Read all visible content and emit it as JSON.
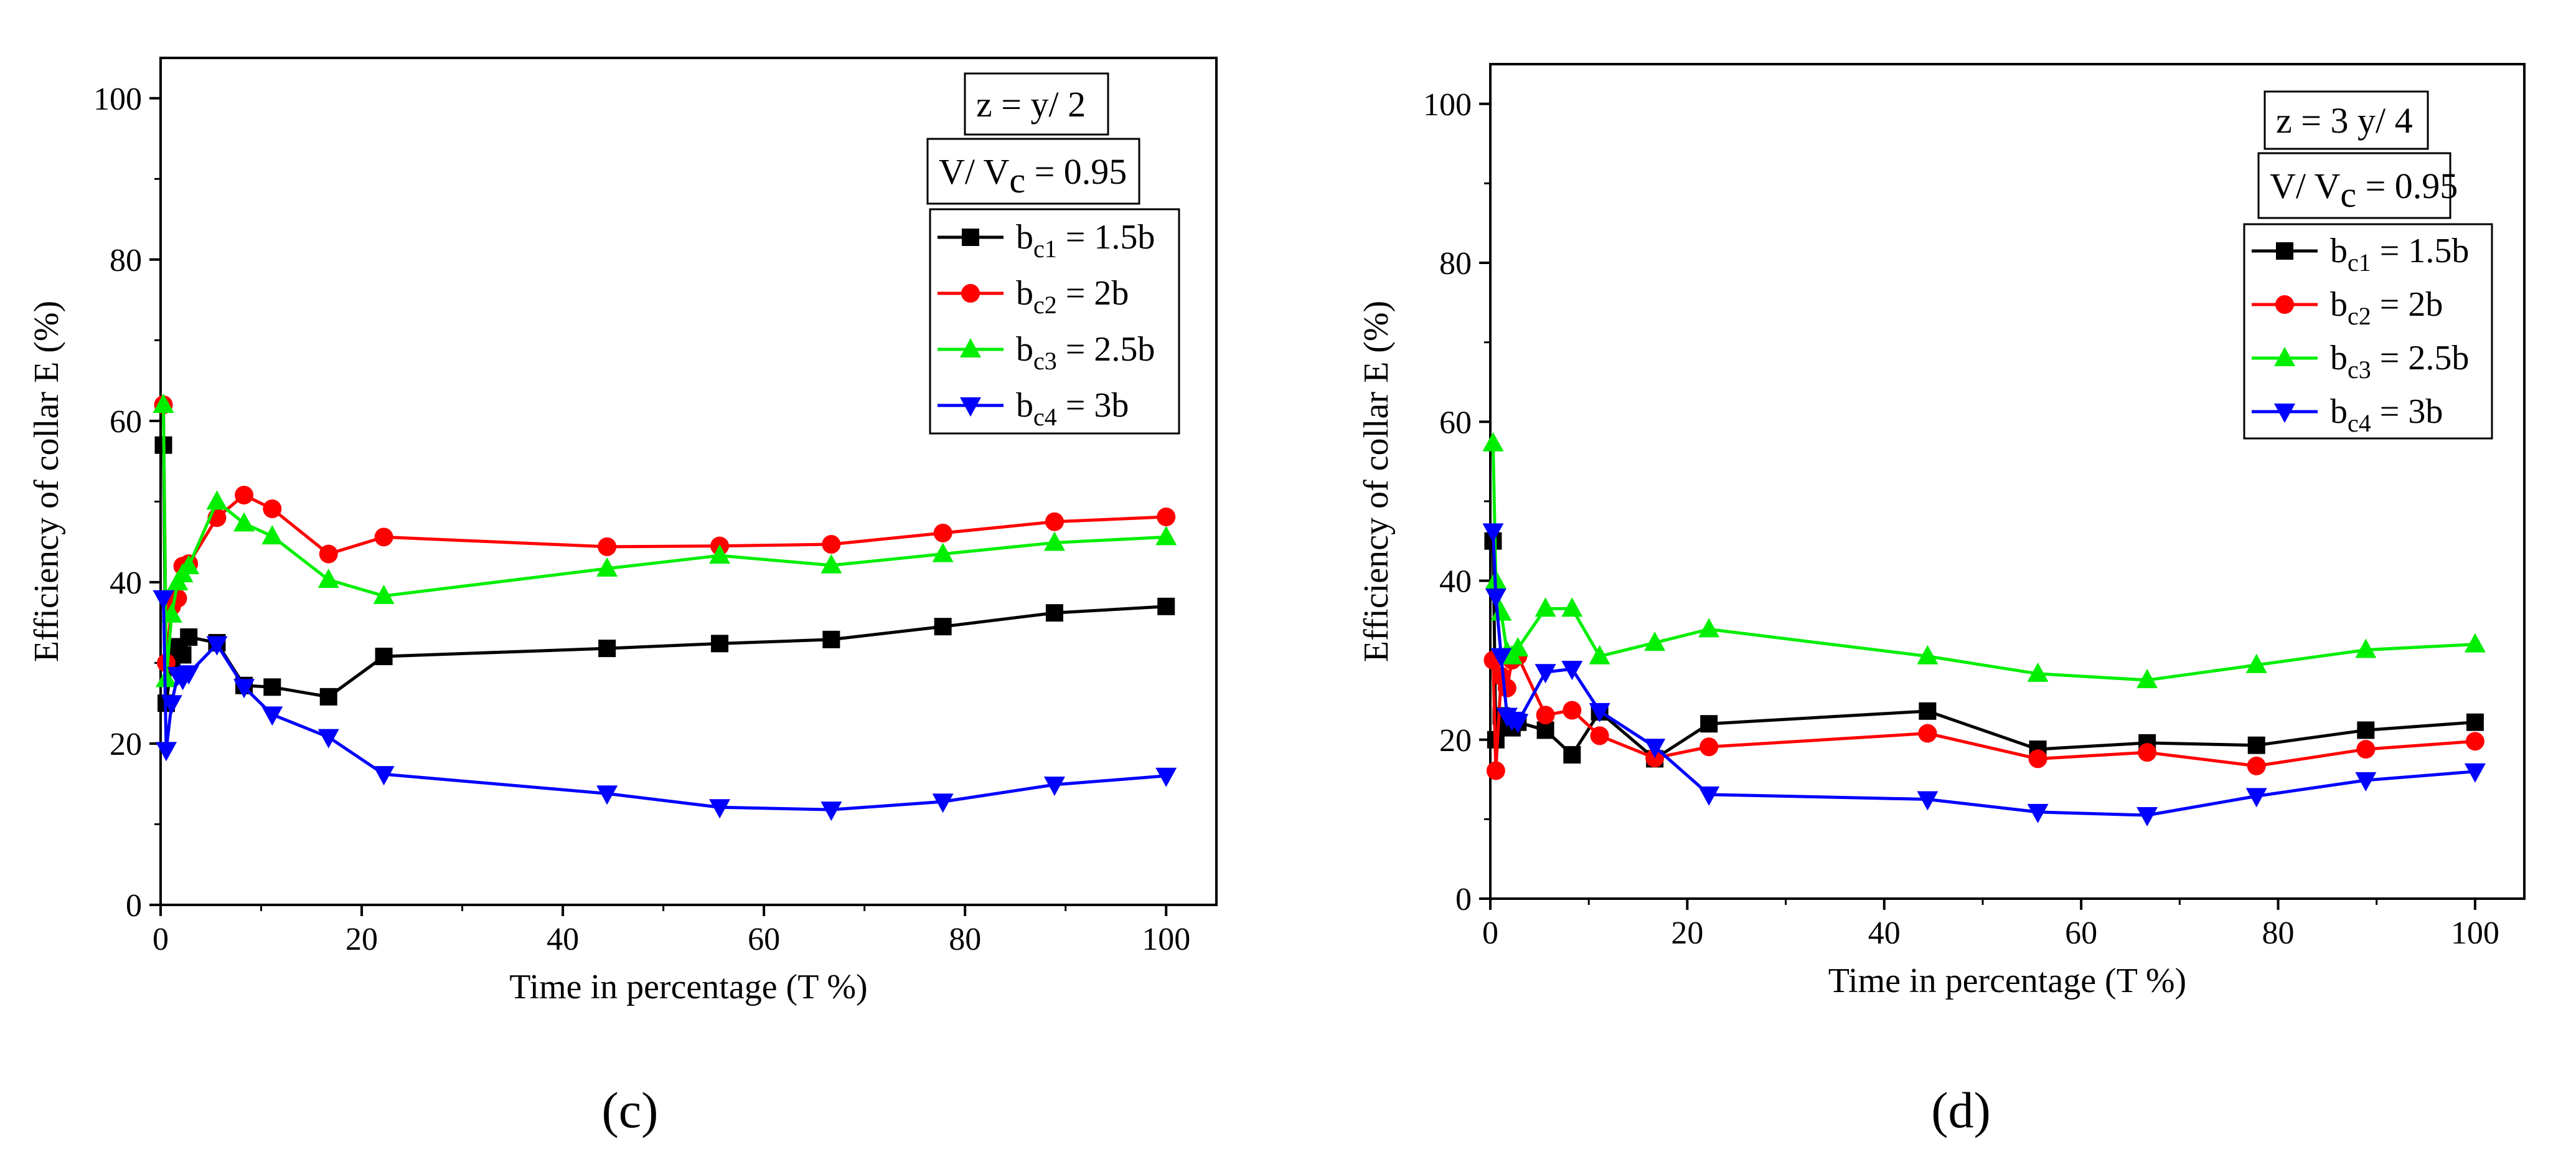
{
  "chart_data": [
    {
      "type": "line",
      "panel_label": "(c)",
      "xlabel": "Time in percentage (T %)",
      "ylabel": "Efficiency of collar E (%)",
      "xlim": [
        0,
        105
      ],
      "ylim": [
        0,
        105
      ],
      "xticks": [
        0,
        20,
        40,
        60,
        80,
        100
      ],
      "yticks": [
        0,
        20,
        40,
        60,
        80,
        100
      ],
      "boxes": [
        "z  =  y/ 2",
        "V/ V"
      ],
      "box_sub": "c",
      "box_value": " = 0.95",
      "legend_position": "top-right",
      "series": [
        {
          "name": "b",
          "sub": "c1",
          "label_value": " = 1.5b",
          "color": "#000000",
          "marker": "square",
          "x": [
            0.28,
            0.56,
            1.1,
            1.7,
            2.2,
            2.8,
            5.6,
            8.3,
            11.1,
            16.7,
            22.2,
            44.4,
            55.6,
            66.7,
            77.8,
            88.9,
            100
          ],
          "y": [
            57,
            25,
            30,
            32,
            31,
            33.2,
            32.5,
            27.2,
            27.0,
            25.8,
            30.8,
            31.8,
            32.4,
            32.9,
            34.5,
            36.2,
            37.0
          ]
        },
        {
          "name": "b",
          "sub": "c2",
          "label_value": " = 2b",
          "color": "#ff0000",
          "marker": "circle",
          "x": [
            0.28,
            0.56,
            1.1,
            1.7,
            2.2,
            2.8,
            5.6,
            8.3,
            11.1,
            16.7,
            22.2,
            44.4,
            55.6,
            66.7,
            77.8,
            88.9,
            100
          ],
          "y": [
            62,
            30,
            37,
            38,
            42,
            42.3,
            48.0,
            50.8,
            49.1,
            43.5,
            45.6,
            44.4,
            44.5,
            44.7,
            46.1,
            47.5,
            48.1
          ]
        },
        {
          "name": "b",
          "sub": "c3",
          "label_value": " = 2.5b",
          "color": "#00ee00",
          "marker": "triangle-up",
          "x": [
            0.28,
            0.56,
            1.1,
            1.7,
            2.2,
            2.8,
            5.6,
            8.3,
            11.1,
            16.7,
            22.2,
            44.4,
            55.6,
            66.7,
            77.8,
            88.9,
            100
          ],
          "y": [
            62,
            28,
            36,
            40,
            41,
            42,
            50.0,
            47.3,
            45.7,
            40.3,
            38.3,
            41.7,
            43.3,
            42.1,
            43.5,
            44.9,
            45.6
          ]
        },
        {
          "name": "b",
          "sub": "c4",
          "label_value": "  = 3b",
          "color": "#0000ff",
          "marker": "triangle-down",
          "x": [
            0.28,
            0.56,
            1.1,
            1.7,
            2.2,
            2.8,
            5.6,
            8.3,
            11.1,
            16.7,
            22.2,
            44.4,
            55.6,
            66.7,
            77.8,
            88.9,
            100
          ],
          "y": [
            38,
            19.2,
            25,
            28.5,
            28,
            28.7,
            32.3,
            27.0,
            23.6,
            20.8,
            16.2,
            13.8,
            12.1,
            11.8,
            12.8,
            14.9,
            16.0
          ]
        }
      ]
    },
    {
      "type": "line",
      "panel_label": "(d)",
      "xlabel": "Time in percentage (T %)",
      "ylabel": "Efficiency of collar E (%)",
      "xlim": [
        0,
        105
      ],
      "ylim": [
        0,
        105
      ],
      "xticks": [
        0,
        20,
        40,
        60,
        80,
        100
      ],
      "yticks": [
        0,
        20,
        40,
        60,
        80,
        100
      ],
      "boxes": [
        "z  =  3 y/ 4",
        "V/ V"
      ],
      "box_sub": "c",
      "box_value": " = 0.95",
      "legend_position": "top-right",
      "series": [
        {
          "name": "b",
          "sub": "c1",
          "label_value": " = 1.5b",
          "color": "#000000",
          "marker": "square",
          "x": [
            0.28,
            0.56,
            1.1,
            1.7,
            2.2,
            2.8,
            5.6,
            8.3,
            11.1,
            16.7,
            22.2,
            44.4,
            55.6,
            66.7,
            77.8,
            88.9,
            100
          ],
          "y": [
            45,
            20,
            23,
            22,
            21.5,
            22.2,
            21.2,
            18.1,
            23.5,
            17.6,
            22.0,
            23.6,
            18.8,
            19.6,
            19.3,
            21.2,
            22.2
          ]
        },
        {
          "name": "b",
          "sub": "c2",
          "label_value": " = 2b",
          "color": "#ff0000",
          "marker": "circle",
          "x": [
            0.28,
            0.56,
            1.1,
            1.7,
            2.2,
            2.8,
            5.6,
            8.3,
            11.1,
            16.7,
            22.2,
            44.4,
            55.6,
            66.7,
            77.8,
            88.9,
            100
          ],
          "y": [
            30,
            16.1,
            28,
            26.5,
            30,
            30.5,
            23.1,
            23.7,
            20.5,
            17.7,
            19.1,
            20.8,
            17.6,
            18.4,
            16.7,
            18.8,
            19.8
          ]
        },
        {
          "name": "b",
          "sub": "c3",
          "label_value": " = 2.5b",
          "color": "#00ee00",
          "marker": "triangle-up",
          "x": [
            0.28,
            0.56,
            1.1,
            1.7,
            2.2,
            2.8,
            5.6,
            8.3,
            11.1,
            16.7,
            22.2,
            44.4,
            55.6,
            66.7,
            77.8,
            88.9,
            100
          ],
          "y": [
            57.3,
            40,
            36,
            31,
            30.5,
            31.5,
            36.5,
            36.5,
            30.5,
            32.2,
            33.9,
            30.5,
            28.3,
            27.5,
            29.4,
            31.3,
            32.0
          ]
        },
        {
          "name": "b",
          "sub": "c4",
          "label_value": "  = 3b",
          "color": "#0000ff",
          "marker": "triangle-down",
          "x": [
            0.28,
            0.56,
            1.1,
            1.7,
            2.2,
            2.8,
            5.6,
            8.3,
            11.1,
            16.7,
            22.2,
            44.4,
            55.6,
            66.7,
            77.8,
            88.9,
            100
          ],
          "y": [
            46.2,
            38,
            30.5,
            23,
            22.5,
            22.2,
            28.5,
            28.9,
            23.6,
            19.1,
            13.1,
            12.5,
            10.9,
            10.5,
            12.9,
            14.9,
            16.0
          ]
        }
      ]
    }
  ]
}
